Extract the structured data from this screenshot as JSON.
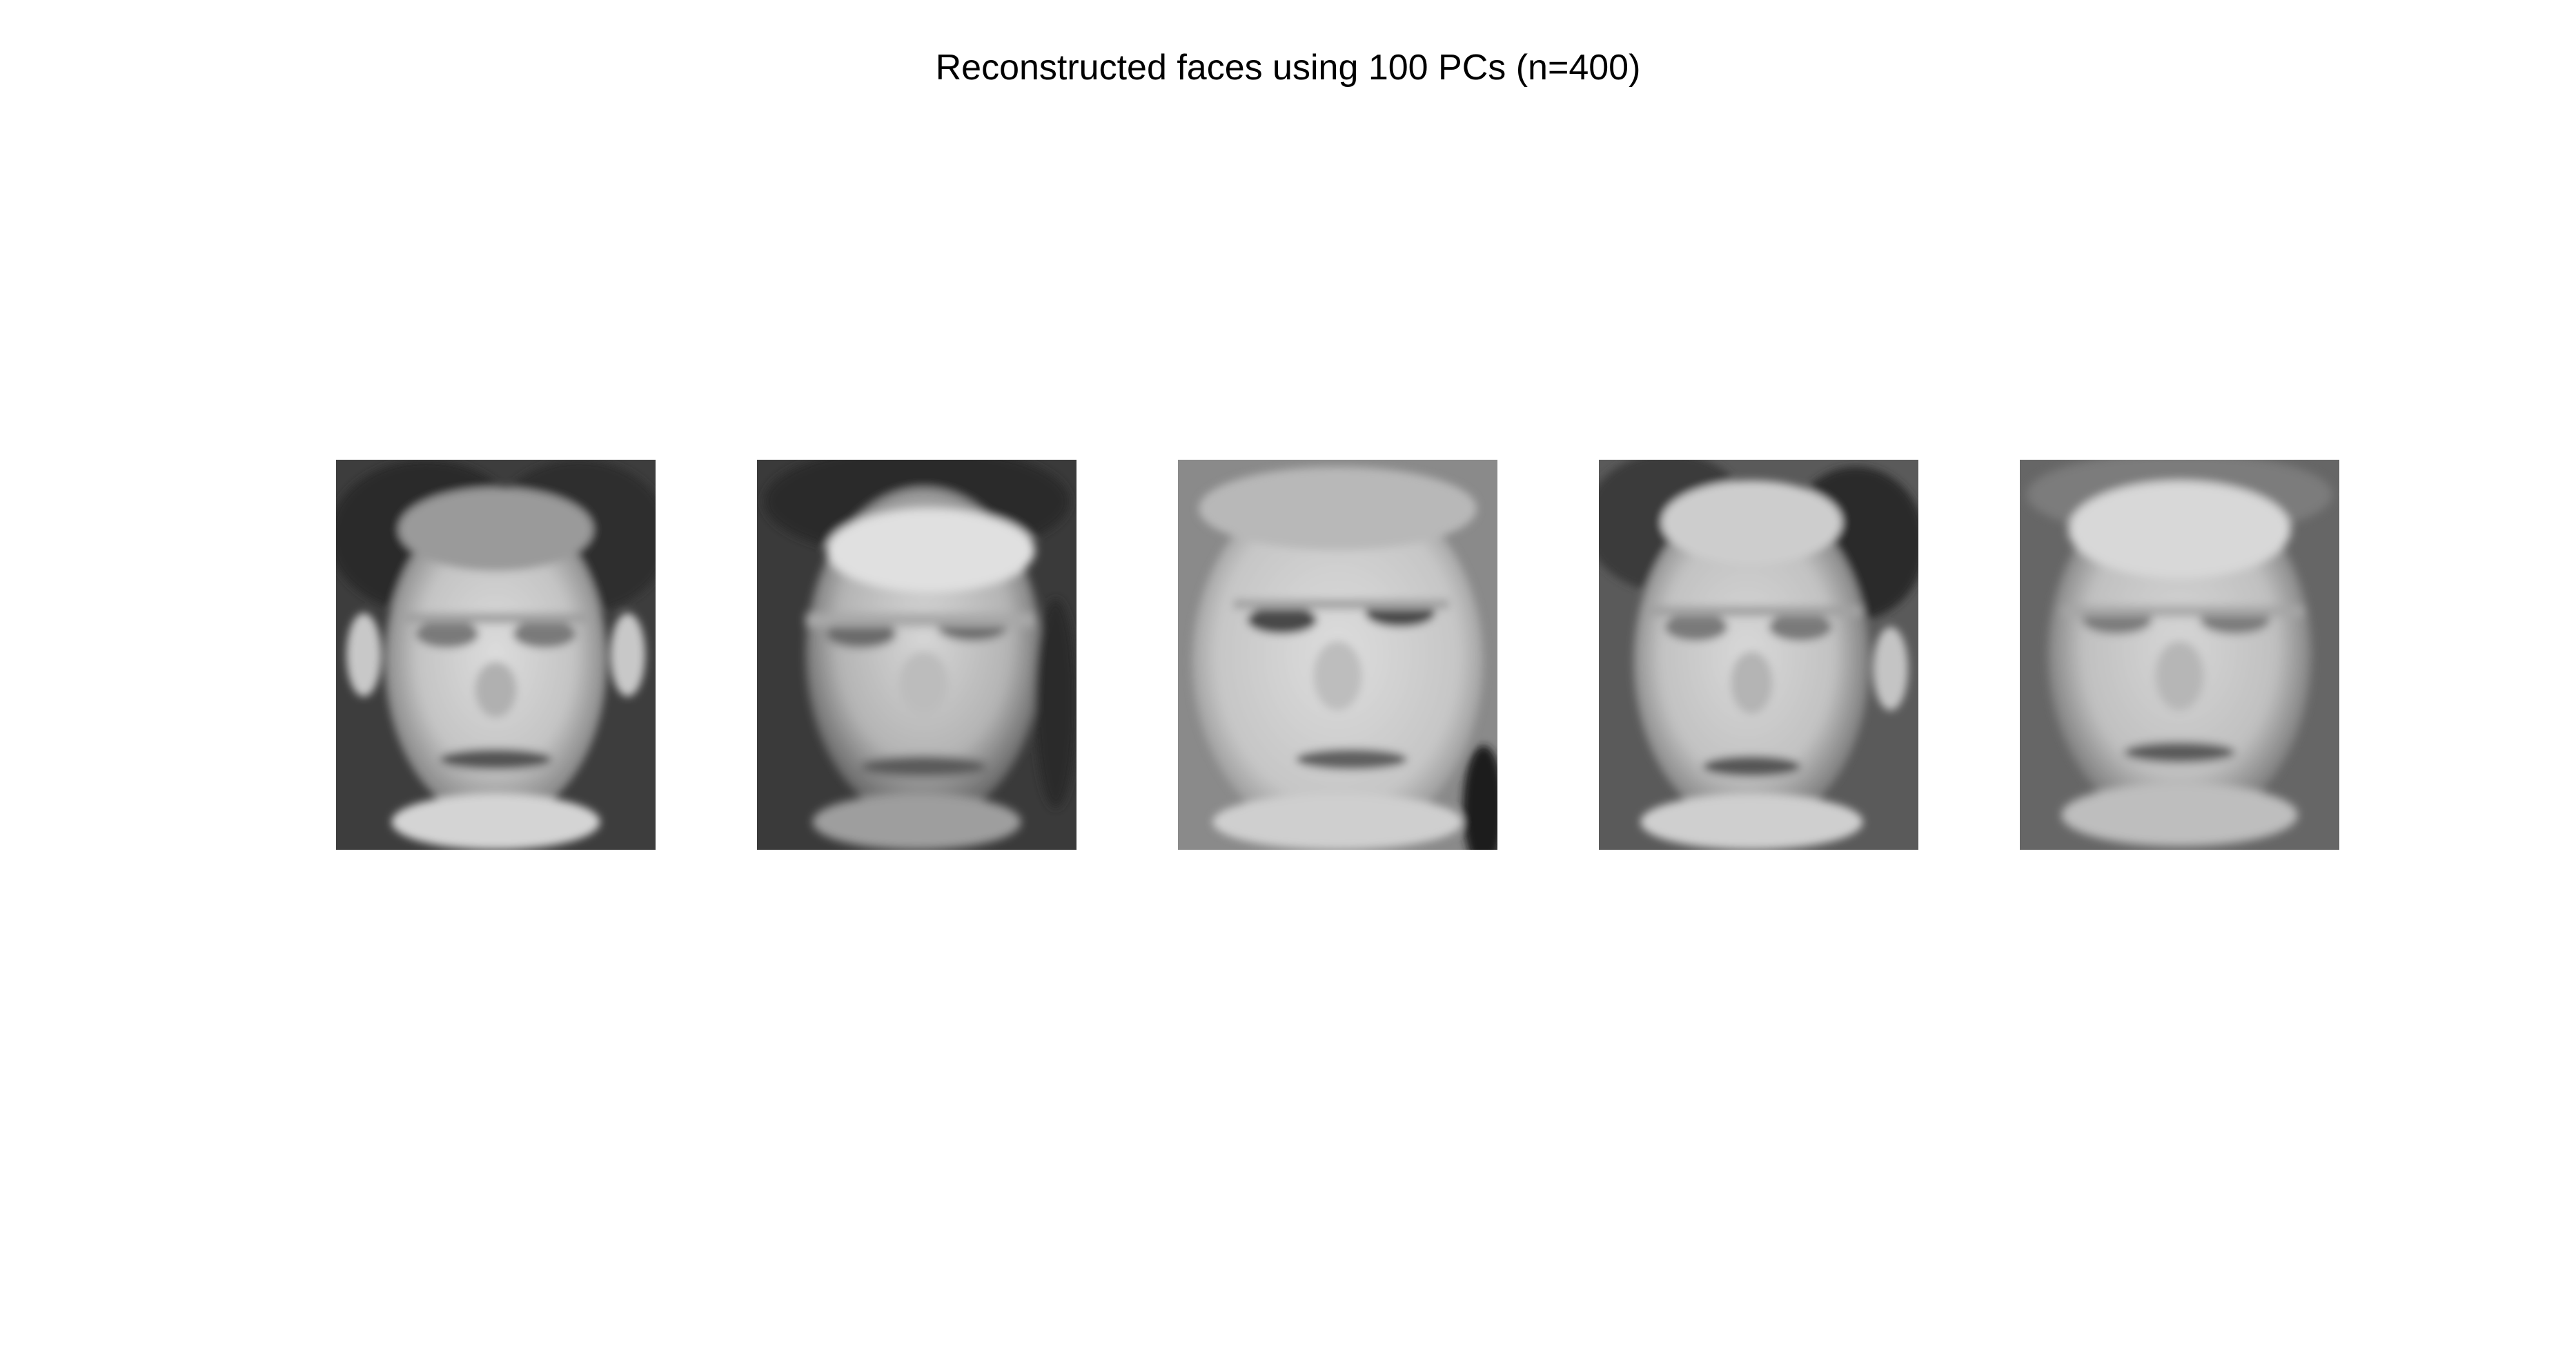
{
  "figure": {
    "title": "Reconstructed faces using 100 PCs (n=400)"
  },
  "faces": [
    {
      "index": 1,
      "background": "#3d3d3d",
      "skin": "#c9c9c9"
    },
    {
      "index": 2,
      "background": "#3a3a3a",
      "skin": "#bdbdbd"
    },
    {
      "index": 3,
      "background": "#8a8a8a",
      "skin": "#cfcfcf"
    },
    {
      "index": 4,
      "background": "#5a5a5a",
      "skin": "#c6c6c6"
    },
    {
      "index": 5,
      "background": "#666666",
      "skin": "#c4c4c4"
    }
  ]
}
